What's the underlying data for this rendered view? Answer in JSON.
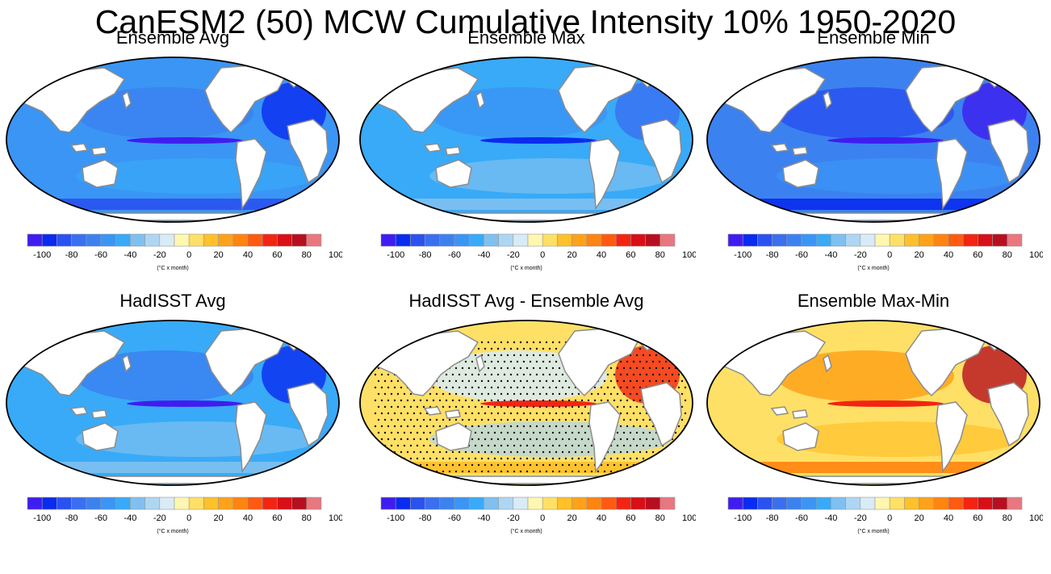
{
  "title": "CanESM2 (50) MCW Cumulative Intensity 10% 1950-2020",
  "panels": [
    {
      "title": "Ensemble Avg",
      "scheme": "cool"
    },
    {
      "title": "Ensemble Max",
      "scheme": "light"
    },
    {
      "title": "Ensemble Min",
      "scheme": "deep"
    },
    {
      "title": "HadISST Avg",
      "scheme": "obs"
    },
    {
      "title": "HadISST Avg - Ensemble Avg",
      "scheme": "diff",
      "stippled": true
    },
    {
      "title": "Ensemble Max-Min",
      "scheme": "warm"
    }
  ],
  "colorbar": {
    "ticks": [
      "-100",
      "-80",
      "-60",
      "-40",
      "-20",
      "0",
      "20",
      "40",
      "60",
      "80",
      "100"
    ],
    "unit": "(°C x month)",
    "colors": [
      "#3f1df0",
      "#0a2bf0",
      "#2a52f0",
      "#3a6ff0",
      "#3b82f0",
      "#3a95f5",
      "#38aaf8",
      "#7fc0f0",
      "#aed6f2",
      "#d8ebf6",
      "#fff7b0",
      "#ffe066",
      "#ffc02a",
      "#ffa21a",
      "#ff8410",
      "#ff5a0f",
      "#f32412",
      "#d80f16",
      "#b70f1f",
      "#e87780"
    ]
  },
  "colors": {
    "land": "#ffffff",
    "coast": "#8c8c8c",
    "border": "#000000"
  }
}
